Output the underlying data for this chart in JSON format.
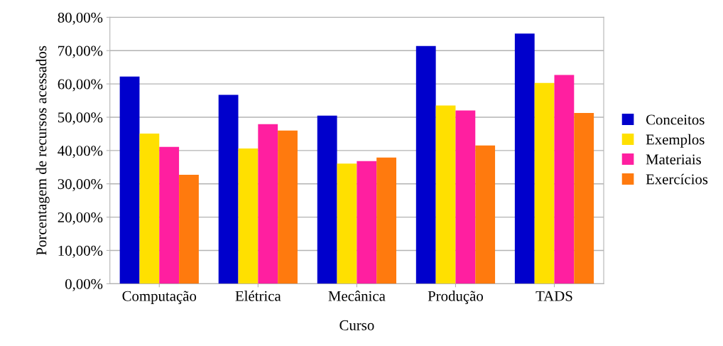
{
  "chart_data": {
    "type": "bar",
    "xlabel": "Curso",
    "ylabel": "Porcentagem de recursos acessados",
    "categories": [
      "Computação",
      "Elétrica",
      "Mecânica",
      "Produção",
      "TADS"
    ],
    "series": [
      {
        "name": "Conceitos",
        "color": "#0000cc",
        "values": [
          62.2,
          56.7,
          50.5,
          71.4,
          75.1
        ]
      },
      {
        "name": "Exemplos",
        "color": "#ffe000",
        "values": [
          45.1,
          40.6,
          36.1,
          53.5,
          60.3
        ]
      },
      {
        "name": "Materiais",
        "color": "#ff1fa0",
        "values": [
          41.1,
          47.9,
          36.8,
          52.0,
          62.7
        ]
      },
      {
        "name": "Exercícios",
        "color": "#ff7a0e",
        "values": [
          32.7,
          46.0,
          37.9,
          41.5,
          51.3
        ]
      }
    ],
    "ylim": [
      0,
      80
    ],
    "yticks": [
      {
        "value": 0,
        "label": "0,00%"
      },
      {
        "value": 10,
        "label": "10,00%"
      },
      {
        "value": 20,
        "label": "20,00%"
      },
      {
        "value": 30,
        "label": "30,00%"
      },
      {
        "value": 40,
        "label": "40,00%"
      },
      {
        "value": 50,
        "label": "50,00%"
      },
      {
        "value": 60,
        "label": "60,00%"
      },
      {
        "value": 70,
        "label": "70,00%"
      },
      {
        "value": 80,
        "label": "80,00%"
      }
    ],
    "grid": "y",
    "legend": "right"
  }
}
